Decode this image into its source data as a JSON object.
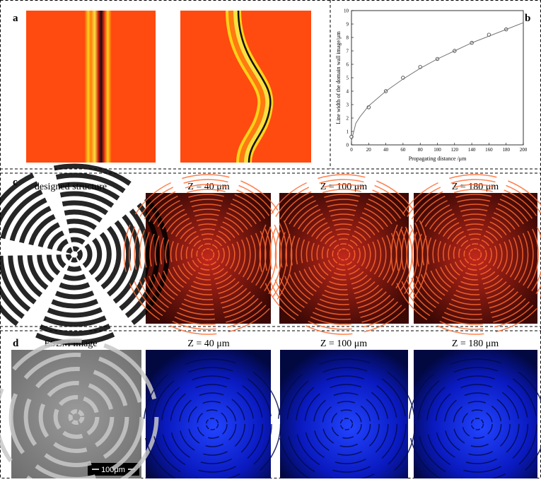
{
  "labels": {
    "a": "a",
    "b": "b",
    "c": "c",
    "d": "d"
  },
  "chart_data": {
    "type": "scatter",
    "xlabel": "Propagating distance /μm",
    "ylabel": "Line width of the domain wall image/μm",
    "xlim": [
      0,
      200
    ],
    "xticks": [
      0,
      20,
      40,
      60,
      80,
      100,
      120,
      140,
      160,
      180,
      200
    ],
    "ylim": [
      0,
      10
    ],
    "yticks": [
      0,
      1,
      2,
      3,
      4,
      5,
      6,
      7,
      8,
      9,
      10
    ],
    "series": [
      {
        "marker": "circle",
        "color": "#333333",
        "x": [
          0,
          20,
          40,
          60,
          80,
          100,
          120,
          140,
          160,
          180
        ],
        "values": [
          0.6,
          2.8,
          4.0,
          5.0,
          5.8,
          6.4,
          7.0,
          7.6,
          8.2,
          8.6
        ]
      },
      {
        "marker": "line",
        "color": "#777777",
        "x": [
          0,
          5,
          10,
          20,
          40,
          60,
          80,
          100,
          120,
          140,
          160,
          180,
          200
        ],
        "values": [
          0.3,
          1.6,
          2.1,
          2.9,
          4.0,
          4.9,
          5.7,
          6.4,
          7.0,
          7.6,
          8.1,
          8.6,
          9.1
        ]
      }
    ]
  },
  "panel_c": {
    "titles": [
      "designed structure",
      "Z = 40 μm",
      "Z = 100 μm",
      "Z = 180 μm"
    ]
  },
  "panel_d": {
    "titles": [
      "ESEM image",
      "Z = 40 μm",
      "Z = 100 μm",
      "Z = 180 μm"
    ],
    "scale_bar": "100μm"
  }
}
